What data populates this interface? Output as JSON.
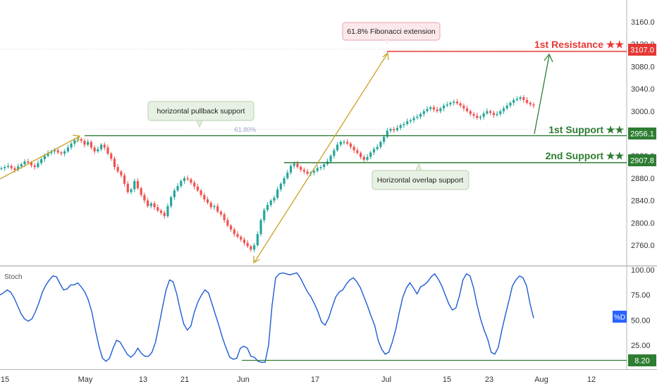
{
  "chart_data": {
    "type": "candlestick",
    "colors": {
      "up": "#26a69a",
      "down": "#ef5350",
      "support": "#2e7d32",
      "resistance": "#e53935",
      "fib_arrow": "#c9a227",
      "stoch": "#1e5bd6",
      "badge_blue": "#2962ff"
    },
    "price_axis": {
      "ticks": [
        "3160.0",
        "3120.0",
        "3080.0",
        "3040.0",
        "3000.0",
        "2960.0",
        "2920.0",
        "2880.0",
        "2840.0",
        "2800.0",
        "2760.0"
      ],
      "tick_values": [
        3160,
        3120,
        3080,
        3040,
        3000,
        2960,
        2920,
        2880,
        2840,
        2800,
        2760
      ]
    },
    "stoch_axis": {
      "ticks": [
        "100.00",
        "75.00",
        "50.00",
        "25.00"
      ],
      "tick_values": [
        100,
        75,
        50,
        25
      ]
    },
    "x_axis": {
      "labels": [
        "15",
        "May",
        "13",
        "21",
        "Jun",
        "17",
        "Jul",
        "15",
        "23",
        "Aug",
        "12"
      ]
    },
    "levels": [
      {
        "name": "1st Resistance ★★",
        "value": 3107.0,
        "badge": "3107.0",
        "kind": "resistance"
      },
      {
        "name": "1st Support ★★",
        "value": 2956.1,
        "badge": "2956.1",
        "kind": "support"
      },
      {
        "name": "2nd Support ★★",
        "value": 2907.8,
        "badge": "2907.8",
        "kind": "support"
      }
    ],
    "annotations": {
      "fib_callout": "61.8% Fibonacci extension",
      "pullback_callout": "horizontal pullback support",
      "overlap_callout": "Horizontal overlap support",
      "fib_level_label": "61.80%"
    },
    "stoch": {
      "title": "Stoch",
      "series_label": "%D",
      "level": 8.2,
      "level_badge": "8.20",
      "values": [
        75,
        77,
        80,
        78,
        72,
        64,
        56,
        51,
        49,
        51,
        58,
        67,
        78,
        85,
        90,
        94,
        93,
        86,
        80,
        81,
        85,
        85,
        87,
        83,
        78,
        70,
        58,
        40,
        24,
        12,
        9,
        12,
        22,
        30,
        28,
        22,
        16,
        13,
        16,
        22,
        17,
        14,
        14,
        18,
        28,
        45,
        63,
        80,
        90,
        88,
        76,
        60,
        46,
        40,
        44,
        58,
        68,
        75,
        80,
        77,
        66,
        55,
        44,
        32,
        22,
        13,
        11,
        12,
        22,
        24,
        22,
        14,
        13,
        9,
        8,
        8,
        25,
        65,
        92,
        96,
        97,
        96,
        95,
        96,
        97,
        92,
        85,
        78,
        73,
        66,
        58,
        48,
        45,
        52,
        63,
        73,
        78,
        80,
        86,
        90,
        92,
        88,
        82,
        73,
        64,
        54,
        45,
        30,
        21,
        16,
        18,
        28,
        41,
        58,
        73,
        82,
        87,
        82,
        76,
        83,
        85,
        88,
        93,
        96,
        91,
        84,
        75,
        66,
        60,
        62,
        74,
        90,
        96,
        94,
        82,
        65,
        51,
        40,
        31,
        18,
        16,
        23,
        40,
        55,
        69,
        84,
        90,
        94,
        92,
        84,
        66,
        52
      ]
    },
    "price": {
      "values": [
        2898,
        2900,
        2902,
        2898,
        2895,
        2901,
        2905,
        2910,
        2908,
        2903,
        2900,
        2907,
        2914,
        2920,
        2925,
        2928,
        2930,
        2926,
        2924,
        2928,
        2935,
        2942,
        2948,
        2950,
        2947,
        2940,
        2945,
        2935,
        2928,
        2932,
        2940,
        2935,
        2924,
        2915,
        2900,
        2892,
        2885,
        2870,
        2855,
        2860,
        2875,
        2862,
        2850,
        2840,
        2830,
        2835,
        2828,
        2822,
        2818,
        2812,
        2830,
        2846,
        2858,
        2866,
        2875,
        2880,
        2878,
        2872,
        2865,
        2858,
        2850,
        2842,
        2836,
        2828,
        2830,
        2820,
        2815,
        2805,
        2795,
        2788,
        2780,
        2775,
        2770,
        2764,
        2758,
        2752,
        2760,
        2780,
        2805,
        2823,
        2832,
        2840,
        2845,
        2860,
        2870,
        2880,
        2890,
        2902,
        2906,
        2900,
        2895,
        2892,
        2888,
        2890,
        2893,
        2898,
        2900,
        2905,
        2910,
        2920,
        2930,
        2940,
        2945,
        2945,
        2942,
        2936,
        2930,
        2925,
        2918,
        2913,
        2918,
        2926,
        2932,
        2936,
        2945,
        2954,
        2965,
        2968,
        2966,
        2970,
        2975,
        2977,
        2982,
        2984,
        2988,
        2990,
        2995,
        3000,
        3004,
        3007,
        3003,
        3000,
        3005,
        3010,
        3012,
        3015,
        3017,
        3014,
        3010,
        3005,
        3000,
        2995,
        2992,
        2988,
        2990,
        2996,
        3000,
        2997,
        2993,
        2995,
        3000,
        3005,
        3010,
        3015,
        3020,
        3022,
        3025,
        3020,
        3015,
        3012,
        3010
      ],
      "min": 2750,
      "max": 3030
    }
  }
}
